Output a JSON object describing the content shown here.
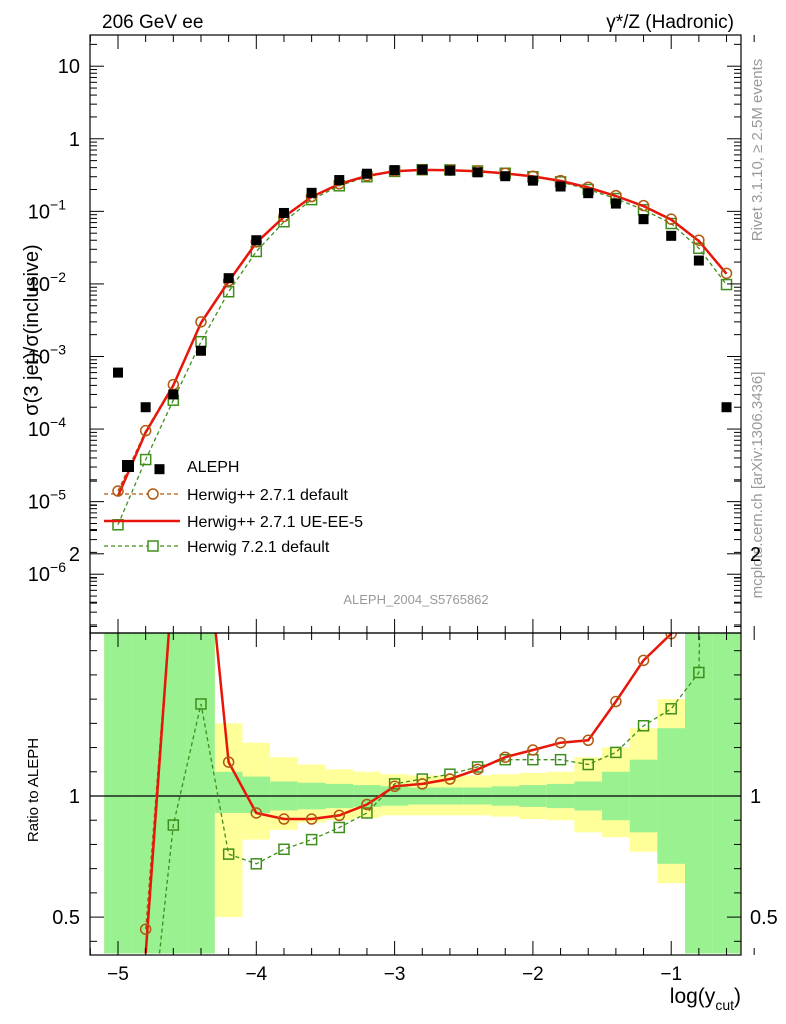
{
  "header": {
    "left": "206 GeV ee",
    "right": "γ*/Z (Hadronic)"
  },
  "side": {
    "rivet": "Rivet 3.1.10, ≥ 2.5M events",
    "mcplots": "mcplots.cern.ch [arXiv:1306.3436]"
  },
  "watermark": "ALEPH_2004_S5765862",
  "upper_ylabel": "σ(3 jet)/σ(inclusive)",
  "lower_ylabel": "Ratio to ALEPH",
  "xlabel": {
    "main": "log(y",
    "sub": "cut",
    "close": ")"
  },
  "upper_yticks": [
    {
      "v": 10,
      "mant": "10",
      "exp": ""
    },
    {
      "v": 1,
      "mant": "1",
      "exp": ""
    },
    {
      "v": 0.1,
      "mant": "10",
      "exp": "−1"
    },
    {
      "v": 0.01,
      "mant": "10",
      "exp": "−2"
    },
    {
      "v": 0.001,
      "mant": "10",
      "exp": "−3"
    },
    {
      "v": 0.0001,
      "mant": "10",
      "exp": "−4"
    },
    {
      "v": 1e-05,
      "mant": "10",
      "exp": "−5"
    },
    {
      "v": 1e-06,
      "mant": "10",
      "exp": "−6"
    }
  ],
  "lower_yticks": [
    {
      "v": 2,
      "label": "2"
    },
    {
      "v": 1,
      "label": "1"
    },
    {
      "v": 0.5,
      "label": "0.5"
    }
  ],
  "xticks": [
    {
      "v": -5,
      "label": "−5"
    },
    {
      "v": -4,
      "label": "−4"
    },
    {
      "v": -3,
      "label": "−3"
    },
    {
      "v": -2,
      "label": "−2"
    },
    {
      "v": -1,
      "label": "−1"
    }
  ],
  "chart_data": {
    "type": "scatter",
    "xlabel": "log(y_cut)",
    "ylabel": "σ(3 jet)/σ(inclusive)",
    "xlim": [
      -5.2,
      -0.4
    ],
    "ylim": [
      1.5e-07,
      30
    ],
    "yscale": "log",
    "ratio_ylim": [
      0.35,
      2.4
    ],
    "legend_position": "lower-left",
    "colors": {
      "data": "#000000",
      "h271": "#b05a10",
      "ue": "#e8150b",
      "h721": "#3e8e1c",
      "band_inner": "#99f28f",
      "band_outer": "#ffff99"
    },
    "data": {
      "name": "ALEPH",
      "x": [
        -5.0,
        -4.8,
        -4.7,
        -4.6,
        -4.4,
        -4.2,
        -4.0,
        -3.8,
        -3.6,
        -3.4,
        -3.2,
        -3.0,
        -2.8,
        -2.6,
        -2.4,
        -2.2,
        -2.0,
        -1.8,
        -1.6,
        -1.4,
        -1.2,
        -1.0,
        -0.8,
        -0.6
      ],
      "y": [
        0.0006,
        0.0002,
        2.8e-05,
        0.0003,
        0.0012,
        0.012,
        0.04,
        0.095,
        0.18,
        0.27,
        0.33,
        0.37,
        0.375,
        0.365,
        0.345,
        0.305,
        0.265,
        0.22,
        0.178,
        0.128,
        0.078,
        0.046,
        0.021,
        0.0002
      ]
    },
    "series": [
      {
        "name": "Herwig++ 2.7.1 default",
        "x": [
          -5.0,
          -4.8,
          -4.6,
          -4.4,
          -4.2,
          -4.0,
          -3.8,
          -3.6,
          -3.4,
          -3.2,
          -3.0,
          -2.8,
          -2.6,
          -2.4,
          -2.2,
          -2.0,
          -1.8,
          -1.6,
          -1.4,
          -1.2,
          -1.0,
          -0.8,
          -0.6
        ],
        "y": [
          1.4e-05,
          9.5e-05,
          0.00041,
          0.003,
          0.011,
          0.038,
          0.085,
          0.16,
          0.24,
          0.31,
          0.36,
          0.375,
          0.37,
          0.36,
          0.335,
          0.305,
          0.265,
          0.215,
          0.165,
          0.12,
          0.078,
          0.04,
          0.014
        ]
      },
      {
        "name": "Herwig++ 2.7.1 UE-EE-5",
        "x": [
          -5.0,
          -4.8,
          -4.6,
          -4.4,
          -4.2,
          -4.0,
          -3.8,
          -3.6,
          -3.4,
          -3.2,
          -3.0,
          -2.8,
          -2.6,
          -2.4,
          -2.2,
          -2.0,
          -1.8,
          -1.6,
          -1.4,
          -1.2,
          -1.0,
          -0.8,
          -0.6
        ],
        "y": [
          1.2e-05,
          9e-05,
          0.0004,
          0.0029,
          0.0108,
          0.037,
          0.084,
          0.158,
          0.238,
          0.308,
          0.358,
          0.373,
          0.368,
          0.358,
          0.333,
          0.303,
          0.263,
          0.213,
          0.163,
          0.118,
          0.077,
          0.039,
          0.0138
        ]
      },
      {
        "name": "Herwig 7.2.1 default",
        "x": [
          -5.0,
          -4.8,
          -4.6,
          -4.4,
          -4.2,
          -4.0,
          -3.8,
          -3.6,
          -3.4,
          -3.2,
          -3.0,
          -2.8,
          -2.6,
          -2.4,
          -2.2,
          -2.0,
          -1.8,
          -1.6,
          -1.4,
          -1.2,
          -1.0,
          -0.8,
          -0.6
        ],
        "y": [
          4.8e-06,
          3.8e-05,
          0.00025,
          0.0016,
          0.0078,
          0.028,
          0.072,
          0.145,
          0.225,
          0.3,
          0.355,
          0.375,
          0.372,
          0.36,
          0.335,
          0.3,
          0.255,
          0.2,
          0.15,
          0.105,
          0.068,
          0.031,
          0.0098
        ]
      }
    ],
    "ratio": {
      "h271": {
        "x": [
          -4.8,
          -4.6,
          -4.4,
          -4.2,
          -4.0,
          -3.8,
          -3.6,
          -3.4,
          -3.2,
          -3.0,
          -2.8,
          -2.6,
          -2.4,
          -2.2,
          -2.0,
          -1.8,
          -1.6,
          -1.4,
          -1.2,
          -1.0,
          -0.8
        ],
        "y": [
          0.45,
          1.93,
          2.28,
          1.14,
          0.93,
          0.905,
          0.905,
          0.92,
          0.965,
          1.04,
          1.05,
          1.07,
          1.11,
          1.16,
          1.19,
          1.22,
          1.23,
          1.39,
          1.56,
          1.67,
          1.91
        ]
      },
      "ue": {
        "x": [
          -4.8,
          -4.6,
          -4.4,
          -4.2,
          -4.0,
          -3.8,
          -3.6,
          -3.4,
          -3.2,
          -3.0,
          -2.8,
          -2.6,
          -2.4,
          -2.2,
          -2.0,
          -1.8,
          -1.6,
          -1.4,
          -1.2,
          -1.0,
          -0.8,
          -0.78
        ],
        "y": [
          0.35,
          1.93,
          2.28,
          1.14,
          0.93,
          0.905,
          0.905,
          0.92,
          0.965,
          1.04,
          1.05,
          1.07,
          1.11,
          1.16,
          1.19,
          1.22,
          1.23,
          1.39,
          1.56,
          1.67,
          1.91,
          2.4
        ]
      },
      "h721": {
        "x": [
          -4.7,
          -4.6,
          -4.4,
          -4.2,
          -4.0,
          -3.8,
          -3.6,
          -3.4,
          -3.2,
          -3.0,
          -2.8,
          -2.6,
          -2.4,
          -2.2,
          -2.0,
          -1.8,
          -1.6,
          -1.4,
          -1.2,
          -1.0,
          -0.8,
          -0.77
        ],
        "y": [
          0.35,
          0.88,
          1.38,
          0.76,
          0.72,
          0.78,
          0.82,
          0.87,
          0.93,
          1.05,
          1.07,
          1.09,
          1.12,
          1.15,
          1.15,
          1.15,
          1.13,
          1.18,
          1.29,
          1.36,
          1.51,
          2.4
        ]
      },
      "bands": {
        "edges": [
          -5.1,
          -4.9,
          -4.7,
          -4.5,
          -4.3,
          -4.1,
          -3.9,
          -3.7,
          -3.5,
          -3.3,
          -3.1,
          -2.9,
          -2.7,
          -2.5,
          -2.3,
          -2.1,
          -1.9,
          -1.7,
          -1.5,
          -1.3,
          -1.1,
          -0.9,
          -0.7,
          -0.5
        ],
        "inner_lo": [
          0.35,
          0.35,
          0.35,
          0.35,
          0.93,
          0.93,
          0.94,
          0.945,
          0.95,
          0.955,
          0.96,
          0.965,
          0.965,
          0.965,
          0.96,
          0.955,
          0.95,
          0.94,
          0.9,
          0.85,
          0.72,
          0.35,
          0.35
        ],
        "inner_hi": [
          2.4,
          2.4,
          2.4,
          2.4,
          1.1,
          1.08,
          1.06,
          1.055,
          1.05,
          1.045,
          1.04,
          1.035,
          1.035,
          1.035,
          1.04,
          1.045,
          1.05,
          1.06,
          1.1,
          1.15,
          1.28,
          2.4,
          2.4
        ],
        "outer_lo": [
          0.35,
          0.35,
          0.35,
          0.35,
          0.5,
          0.82,
          0.86,
          0.89,
          0.9,
          0.91,
          0.92,
          0.92,
          0.92,
          0.92,
          0.915,
          0.905,
          0.9,
          0.85,
          0.83,
          0.77,
          0.64,
          0.35,
          0.35
        ],
        "outer_hi": [
          2.4,
          2.4,
          2.4,
          2.4,
          1.3,
          1.22,
          1.16,
          1.13,
          1.11,
          1.1,
          1.09,
          1.085,
          1.085,
          1.085,
          1.09,
          1.095,
          1.1,
          1.16,
          1.2,
          1.28,
          1.4,
          2.4,
          2.4
        ]
      },
      "band_mask": {
        "edges": [
          -4.3,
          -0.9,
          -0.7
        ],
        "note": ""
      }
    }
  }
}
